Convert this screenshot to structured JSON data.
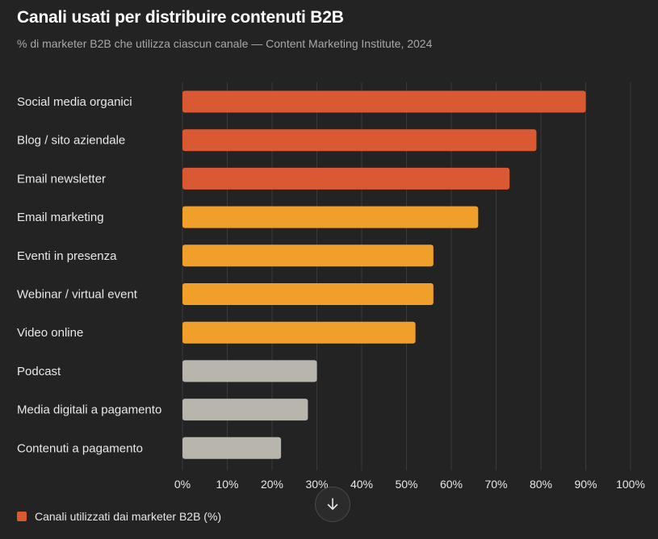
{
  "title": "Canali usati per distribuire contenuti B2B",
  "subtitle": "% di marketer B2B che utilizza ciascun canale — Content Marketing Institute, 2024",
  "legend": {
    "label": "Canali utilizzati dai marketer B2B (%)",
    "color": "#d95a32"
  },
  "scroll_button": {
    "icon": "arrow-down-icon"
  },
  "colors": {
    "background": "#232323",
    "top": "#d95a32",
    "mid": "#f0a02a",
    "low": "#b8b5ad",
    "grid": "#3a3a3a",
    "label": "#e8e8e8"
  },
  "chart_data": {
    "type": "bar",
    "orientation": "horizontal",
    "categories": [
      "Social media organici",
      "Blog / sito aziendale",
      "Email newsletter",
      "Email marketing",
      "Eventi in presenza",
      "Webinar / virtual event",
      "Video online",
      "Podcast",
      "Media digitali a pagamento",
      "Contenuti a pagamento"
    ],
    "values": [
      90,
      79,
      73,
      66,
      56,
      56,
      52,
      30,
      28,
      22
    ],
    "bar_colors": [
      "top",
      "top",
      "top",
      "mid",
      "mid",
      "mid",
      "mid",
      "low",
      "low",
      "low"
    ],
    "xlim": [
      0,
      100
    ],
    "xticks": [
      0,
      10,
      20,
      30,
      40,
      50,
      60,
      70,
      80,
      90,
      100
    ],
    "tick_suffix": "%",
    "grid": true,
    "legend_position": "bottom-left"
  }
}
